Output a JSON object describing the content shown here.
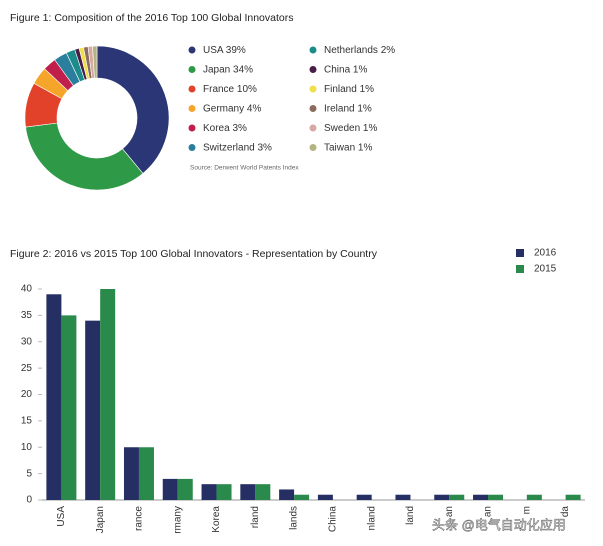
{
  "chart_data": [
    {
      "type": "pie",
      "donut": true,
      "title": "Figure 1: Composition of the 2016 Top 100 Global Innovators",
      "categories": [
        "USA",
        "Japan",
        "France",
        "Germany",
        "Korea",
        "Switzerland",
        "Netherlands",
        "China",
        "Finland",
        "Ireland",
        "Sweden",
        "Taiwan"
      ],
      "values": [
        39,
        34,
        10,
        4,
        3,
        3,
        2,
        1,
        1,
        1,
        1,
        1
      ],
      "value_labels": [
        "39%",
        "34%",
        "10%",
        "4%",
        "3%",
        "3%",
        "2%",
        "1%",
        "1%",
        "1%",
        "1%",
        "1%"
      ],
      "colors": [
        "#2b3676",
        "#2e9a48",
        "#e2412a",
        "#f5a52a",
        "#c01f4c",
        "#2a7f9c",
        "#1b8c8a",
        "#4a1c48",
        "#efe04a",
        "#8c6c5c",
        "#d8a8a4",
        "#b4b482"
      ],
      "source": "Source: Derwent World Patents Index"
    },
    {
      "type": "bar",
      "title": "Figure 2: 2016 vs 2015 Top 100 Global Innovators - Representation by Country",
      "categories": [
        "USA",
        "Japan",
        "rance",
        "rmany",
        "Korea",
        "rland",
        "lands",
        "China",
        "nland",
        "land",
        "an",
        "an",
        "m",
        "da"
      ],
      "series": [
        {
          "name": "2016",
          "color": "#252f63",
          "values": [
            39,
            34,
            10,
            4,
            3,
            3,
            2,
            1,
            1,
            1,
            1,
            1,
            0,
            0
          ]
        },
        {
          "name": "2015",
          "color": "#2a8a4c",
          "values": [
            35,
            40,
            10,
            4,
            3,
            3,
            1,
            0,
            0,
            0,
            1,
            1,
            1,
            1
          ]
        }
      ],
      "ylim": [
        0,
        40
      ],
      "yticks": [
        0,
        5,
        10,
        15,
        20,
        25,
        30,
        35,
        40
      ],
      "legend": "top-right"
    }
  ],
  "watermark": "头条 @电气自动化应用"
}
